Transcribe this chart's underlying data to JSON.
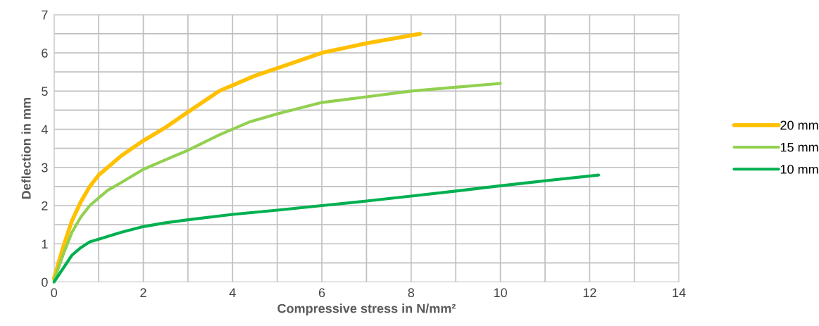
{
  "chart_data": {
    "type": "line",
    "xlabel": "Compressive stress in N/mm²",
    "ylabel": "Deflection in mm",
    "xlim": [
      0,
      14
    ],
    "ylim": [
      0,
      7
    ],
    "xticks": [
      0,
      {
        "value": 1,
        "label": null
      },
      2,
      {
        "value": 3,
        "label": null
      },
      4,
      {
        "value": 5,
        "label": null
      },
      6,
      {
        "value": 7,
        "label": null
      },
      8,
      {
        "value": 9,
        "label": null
      },
      10,
      {
        "value": 11,
        "label": null
      },
      12,
      {
        "value": 13,
        "label": null
      },
      14
    ],
    "yticks": [
      0,
      {
        "value": 0.5,
        "label": null
      },
      1,
      {
        "value": 1.5,
        "label": null
      },
      2,
      {
        "value": 2.5,
        "label": null
      },
      3,
      {
        "value": 3.5,
        "label": null
      },
      4,
      {
        "value": 4.5,
        "label": null
      },
      5,
      {
        "value": 5.5,
        "label": null
      },
      6,
      {
        "value": 6.5,
        "label": null
      },
      7
    ],
    "grid": true,
    "legend": "right",
    "marker": "none",
    "line_style": "solid",
    "series": [
      {
        "name": "20 mm",
        "color": "#ffc000",
        "x": [
          0,
          0.2,
          0.4,
          0.6,
          0.8,
          1,
          1.2,
          1.5,
          2,
          2.5,
          3,
          3.7,
          4.5,
          5,
          6,
          7,
          8.2
        ],
        "values": [
          0.1,
          0.9,
          1.6,
          2.1,
          2.5,
          2.8,
          3.0,
          3.3,
          3.7,
          4.05,
          4.45,
          5.0,
          5.4,
          5.6,
          6.0,
          6.25,
          6.5
        ]
      },
      {
        "name": "15 mm",
        "color": "#92d050",
        "x": [
          0,
          0.2,
          0.4,
          0.6,
          0.8,
          1,
          1.2,
          1.5,
          2,
          2.5,
          3,
          3.7,
          4.4,
          5,
          6,
          7,
          8,
          9,
          10
        ],
        "values": [
          0.05,
          0.7,
          1.3,
          1.7,
          2.0,
          2.2,
          2.4,
          2.6,
          2.95,
          3.2,
          3.45,
          3.85,
          4.2,
          4.4,
          4.7,
          4.85,
          5.0,
          5.1,
          5.2
        ]
      },
      {
        "name": "10 mm",
        "color": "#00b050",
        "x": [
          0,
          0.2,
          0.4,
          0.6,
          0.8,
          1,
          1.5,
          2,
          2.5,
          3,
          4,
          5,
          6,
          7,
          8,
          9,
          10,
          11,
          12.2
        ],
        "values": [
          0.0,
          0.35,
          0.7,
          0.9,
          1.05,
          1.12,
          1.3,
          1.45,
          1.55,
          1.63,
          1.77,
          1.88,
          2.0,
          2.12,
          2.25,
          2.38,
          2.52,
          2.65,
          2.8
        ]
      }
    ]
  }
}
